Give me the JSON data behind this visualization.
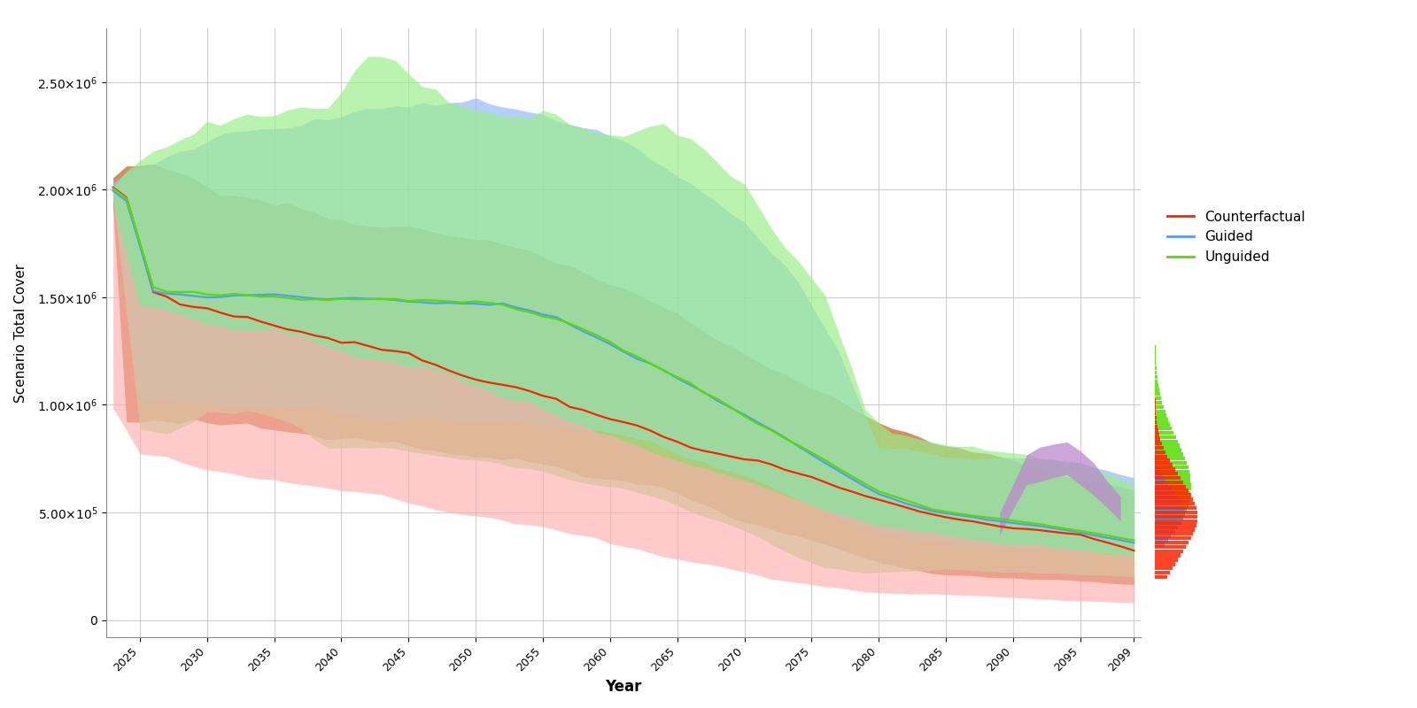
{
  "xlabel": "Year",
  "ylabel": "Scenario Total Cover",
  "background_color": "#ffffff",
  "grid_color": "#cccccc",
  "counterfactual_color": "#ff2200",
  "guided_color": "#5599ff",
  "unguided_color": "#55dd00",
  "band_cf_color": "#c8824a",
  "band_guided_color": "#99bbff",
  "band_unguided_color": "#99ee88",
  "band_pink_color": "#ffaaaa",
  "band_purple_color": "#bb88cc",
  "ylim_min": -80000,
  "ylim_max": 2750000,
  "xlim_min": 2022.5,
  "xlim_max": 2099.5,
  "yticks": [
    0,
    500000,
    1000000,
    1500000,
    2000000,
    2500000
  ],
  "xticks": [
    2025,
    2030,
    2035,
    2040,
    2045,
    2050,
    2055,
    2060,
    2065,
    2070,
    2075,
    2080,
    2085,
    2090,
    2095,
    2099
  ]
}
